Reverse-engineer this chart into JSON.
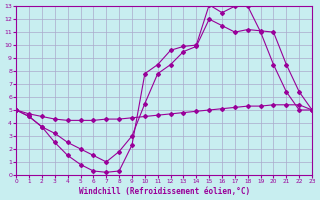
{
  "xlabel": "Windchill (Refroidissement éolien,°C)",
  "background_color": "#c8eef0",
  "grid_color": "#aaaacc",
  "line_color": "#990099",
  "xlim": [
    0,
    23
  ],
  "ylim": [
    0,
    13
  ],
  "xticks": [
    0,
    1,
    2,
    3,
    4,
    5,
    6,
    7,
    8,
    9,
    10,
    11,
    12,
    13,
    14,
    15,
    16,
    17,
    18,
    19,
    20,
    21,
    22,
    23
  ],
  "yticks": [
    0,
    1,
    2,
    3,
    4,
    5,
    6,
    7,
    8,
    9,
    10,
    11,
    12,
    13
  ],
  "line1_x": [
    0,
    1,
    2,
    3,
    4,
    5,
    6,
    7,
    8,
    9,
    10,
    11,
    12,
    13,
    14,
    15,
    16,
    17,
    18,
    19,
    20,
    21,
    22,
    23
  ],
  "line1_y": [
    5.0,
    4.7,
    4.5,
    4.3,
    4.2,
    4.2,
    4.2,
    4.3,
    4.3,
    4.4,
    4.5,
    4.6,
    4.7,
    4.8,
    4.9,
    5.0,
    5.1,
    5.2,
    5.3,
    5.3,
    5.4,
    5.4,
    5.4,
    5.0
  ],
  "line2_x": [
    0,
    1,
    2,
    3,
    4,
    5,
    6,
    7,
    8,
    9,
    10,
    11,
    12,
    13,
    14,
    15,
    16,
    17,
    18,
    19,
    20,
    21,
    22,
    23
  ],
  "line2_y": [
    5.0,
    4.5,
    3.7,
    2.5,
    1.5,
    0.8,
    0.3,
    0.2,
    0.3,
    2.3,
    7.8,
    8.5,
    9.6,
    9.9,
    10.0,
    13.1,
    12.5,
    13.0,
    13.0,
    11.0,
    8.5,
    6.4,
    5.0,
    5.0
  ],
  "line3_x": [
    0,
    1,
    2,
    3,
    4,
    5,
    6,
    7,
    8,
    9,
    10,
    11,
    12,
    13,
    14,
    15,
    16,
    17,
    18,
    19,
    20,
    21,
    22,
    23
  ],
  "line3_y": [
    5.0,
    4.5,
    3.7,
    3.2,
    2.5,
    2.0,
    1.5,
    1.0,
    1.8,
    3.0,
    5.5,
    7.8,
    8.5,
    9.5,
    9.9,
    12.0,
    11.5,
    11.0,
    11.2,
    11.1,
    11.0,
    8.5,
    6.4,
    5.0
  ]
}
